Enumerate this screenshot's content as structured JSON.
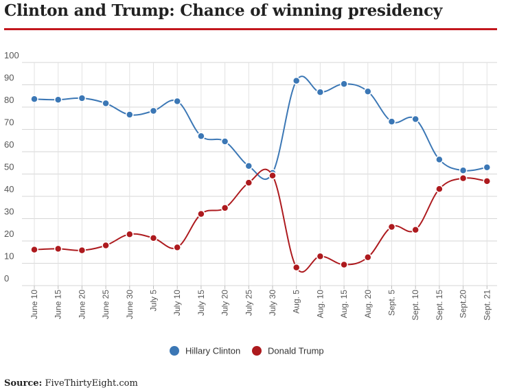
{
  "title": "Clinton and Trump: Chance of winning presidency",
  "source": {
    "label": "Source:",
    "text": "FiveThirtyEight.com"
  },
  "colors": {
    "clinton": "#3b77b5",
    "trump": "#ad1a1e",
    "accent": "#c2161d"
  },
  "chart_data": {
    "type": "line",
    "categories": [
      "June 10",
      "June 15",
      "June 20",
      "June 25",
      "June 30",
      "July 5",
      "July 10",
      "July 15",
      "July 20",
      "July 25",
      "July 30",
      "Aug. 5",
      "Aug. 10",
      "Aug. 15",
      "Aug. 20",
      "Sept. 5",
      "Sept. 10",
      "Sept. 15",
      "Sept.20",
      "Sept. 21"
    ],
    "series": [
      {
        "name": "Hillary Clinton",
        "color": "#3b77b5",
        "values": [
          83.6,
          83.3,
          84.0,
          81.7,
          76.6,
          78.3,
          82.6,
          67.0,
          64.6,
          53.6,
          50.5,
          91.8,
          86.7,
          90.4,
          87.0,
          73.5,
          74.6,
          56.5,
          51.6,
          53.0
        ]
      },
      {
        "name": "Donald Trump",
        "color": "#ad1a1e",
        "values": [
          16.1,
          16.5,
          15.8,
          18.0,
          23.0,
          21.3,
          17.1,
          32.1,
          34.8,
          46.1,
          49.3,
          8.1,
          13.1,
          9.4,
          12.7,
          26.3,
          25.0,
          43.3,
          48.1,
          46.8
        ]
      }
    ],
    "yticks": [
      0,
      10,
      20,
      30,
      40,
      50,
      60,
      70,
      80,
      90,
      100
    ],
    "ylim": [
      0,
      100
    ],
    "grid": true,
    "legend": "bottom"
  }
}
